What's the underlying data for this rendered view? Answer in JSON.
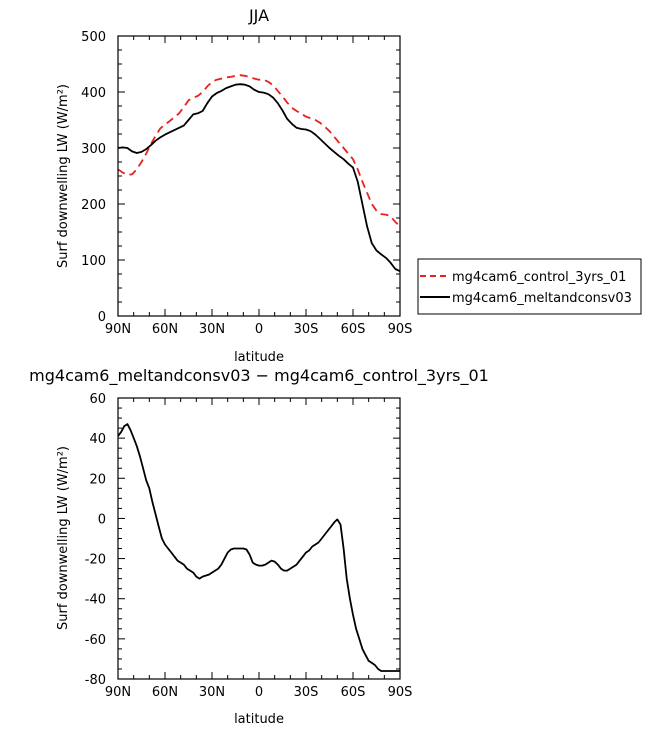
{
  "chart_data": [
    {
      "type": "line",
      "title": "JJA",
      "xlabel": "latitude",
      "ylabel": "Surf downwelling LW (W/m²)",
      "xlim": [
        -90,
        90
      ],
      "ylim": [
        0,
        500
      ],
      "x_ticks": [
        {
          "value": -90,
          "label": "90N"
        },
        {
          "value": -60,
          "label": "60N"
        },
        {
          "value": -30,
          "label": "30N"
        },
        {
          "value": 0,
          "label": "0"
        },
        {
          "value": 30,
          "label": "30S"
        },
        {
          "value": 60,
          "label": "60S"
        },
        {
          "value": 90,
          "label": "90S"
        }
      ],
      "y_ticks": [
        0,
        100,
        200,
        300,
        400,
        500
      ],
      "grid": false,
      "legend": "right",
      "series": [
        {
          "name": "mg4cam6_control_3yrs_01",
          "color": "#e8201e",
          "dash": "dashed",
          "x": [
            -90,
            -87,
            -84,
            -81,
            -78,
            -75,
            -72,
            -69,
            -66,
            -63,
            -60,
            -57,
            -54,
            -51,
            -48,
            -45,
            -42,
            -39,
            -36,
            -33,
            -30,
            -27,
            -24,
            -21,
            -18,
            -15,
            -12,
            -9,
            -6,
            -3,
            0,
            3,
            6,
            9,
            12,
            15,
            18,
            21,
            24,
            27,
            30,
            33,
            36,
            39,
            42,
            45,
            48,
            51,
            54,
            57,
            60,
            63,
            66,
            69,
            72,
            75,
            78,
            81,
            84,
            87,
            90
          ],
          "y": [
            262,
            256,
            252,
            253,
            262,
            275,
            290,
            307,
            322,
            335,
            342,
            348,
            355,
            362,
            373,
            385,
            390,
            393,
            400,
            410,
            418,
            422,
            424,
            426,
            427,
            429,
            430,
            429,
            427,
            424,
            422,
            422,
            418,
            412,
            402,
            392,
            381,
            372,
            366,
            361,
            356,
            353,
            350,
            345,
            338,
            330,
            320,
            310,
            300,
            290,
            280,
            262,
            240,
            220,
            200,
            188,
            182,
            181,
            178,
            168,
            160
          ]
        },
        {
          "name": "mg4cam6_meltandconsv03",
          "color": "#000000",
          "dash": "solid",
          "x": [
            -90,
            -87,
            -84,
            -81,
            -78,
            -75,
            -72,
            -69,
            -66,
            -63,
            -60,
            -57,
            -54,
            -51,
            -48,
            -45,
            -42,
            -39,
            -36,
            -33,
            -30,
            -27,
            -24,
            -21,
            -18,
            -15,
            -12,
            -9,
            -6,
            -3,
            0,
            3,
            6,
            9,
            12,
            15,
            18,
            21,
            24,
            27,
            30,
            33,
            36,
            39,
            42,
            45,
            48,
            51,
            54,
            57,
            60,
            63,
            66,
            69,
            72,
            75,
            78,
            81,
            84,
            87,
            90
          ],
          "y": [
            300,
            301,
            300,
            294,
            291,
            293,
            298,
            305,
            313,
            319,
            324,
            328,
            332,
            336,
            340,
            350,
            360,
            362,
            366,
            380,
            392,
            398,
            402,
            407,
            410,
            413,
            414,
            413,
            410,
            404,
            400,
            399,
            396,
            390,
            380,
            367,
            352,
            343,
            336,
            334,
            333,
            330,
            324,
            316,
            308,
            300,
            293,
            286,
            280,
            272,
            265,
            240,
            200,
            160,
            130,
            117,
            110,
            104,
            95,
            84,
            80
          ]
        }
      ]
    },
    {
      "type": "line",
      "title": "mg4cam6_meltandconsv03 − mg4cam6_control_3yrs_01",
      "xlabel": "latitude",
      "ylabel": "Surf downwelling LW (W/m²)",
      "xlim": [
        -90,
        90
      ],
      "ylim": [
        -80,
        60
      ],
      "x_ticks": [
        {
          "value": -90,
          "label": "90N"
        },
        {
          "value": -60,
          "label": "60N"
        },
        {
          "value": -30,
          "label": "30N"
        },
        {
          "value": 0,
          "label": "0"
        },
        {
          "value": 30,
          "label": "30S"
        },
        {
          "value": 60,
          "label": "60S"
        },
        {
          "value": 90,
          "label": "90S"
        }
      ],
      "y_ticks": [
        -80,
        -60,
        -40,
        -20,
        0,
        20,
        40,
        60
      ],
      "grid": false,
      "series": [
        {
          "color": "#000000",
          "dash": "solid",
          "x": [
            -90,
            -88,
            -86,
            -84,
            -82,
            -80,
            -78,
            -76,
            -74,
            -72,
            -70,
            -68,
            -66,
            -64,
            -62,
            -60,
            -58,
            -56,
            -54,
            -52,
            -50,
            -48,
            -46,
            -44,
            -42,
            -40,
            -38,
            -36,
            -34,
            -32,
            -30,
            -28,
            -26,
            -24,
            -22,
            -20,
            -18,
            -16,
            -14,
            -12,
            -10,
            -8,
            -6,
            -4,
            -2,
            0,
            2,
            4,
            6,
            8,
            10,
            12,
            14,
            16,
            18,
            20,
            22,
            24,
            26,
            28,
            30,
            32,
            34,
            36,
            38,
            40,
            42,
            44,
            46,
            48,
            50,
            52,
            54,
            56,
            58,
            60,
            62,
            64,
            66,
            68,
            70,
            72,
            74,
            76,
            78,
            80,
            82,
            84,
            86,
            88,
            90
          ],
          "y": [
            41,
            43,
            46,
            47,
            44,
            40,
            36,
            31,
            25,
            19,
            15,
            8,
            2,
            -4,
            -10,
            -13,
            -15,
            -17,
            -19,
            -21,
            -22,
            -23,
            -25,
            -26,
            -27,
            -29,
            -30,
            -29,
            -28.5,
            -28,
            -27,
            -26,
            -25,
            -23,
            -20,
            -17,
            -15.5,
            -15,
            -15,
            -15,
            -15,
            -15.5,
            -18,
            -22,
            -23,
            -23.5,
            -23.5,
            -23,
            -22,
            -21,
            -21.5,
            -23,
            -25,
            -26,
            -26,
            -25,
            -24,
            -23,
            -21,
            -19,
            -17,
            -16,
            -14,
            -13,
            -12,
            -10,
            -8,
            -6,
            -4,
            -2,
            -0.5,
            -3,
            -15,
            -30,
            -40,
            -48,
            -55,
            -60,
            -65,
            -68,
            -71,
            -72,
            -73,
            -75,
            -76,
            -76,
            -76,
            -76,
            -76,
            -76,
            -76
          ]
        }
      ]
    }
  ]
}
